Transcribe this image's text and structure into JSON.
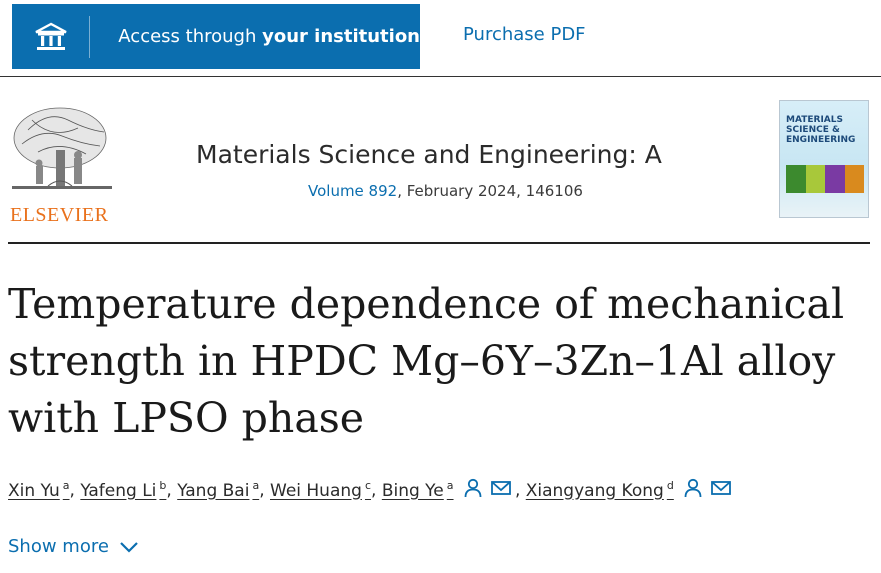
{
  "topbar": {
    "access_prefix": "Access through ",
    "access_bold": "your institution",
    "purchase_label": "Purchase PDF"
  },
  "journal": {
    "publisher": "ELSEVIER",
    "name": "Materials Science and Engineering: A",
    "volume_link": "Volume 892",
    "issue_rest": ", February 2024, 146106",
    "cover_title_line1": "MATERIALS",
    "cover_title_line2": "SCIENCE &",
    "cover_title_line3": "ENGINEERING"
  },
  "article": {
    "title_line1": "Temperature dependence of mechanical",
    "title_line2": "strength in HPDC Mg–6Y–3Zn–1Al alloy",
    "title_line3": "with LPSO phase"
  },
  "authors": [
    {
      "name": "Xin Yu",
      "aff": "a"
    },
    {
      "name": "Yafeng Li",
      "aff": "b"
    },
    {
      "name": "Yang Bai",
      "aff": "a"
    },
    {
      "name": "Wei Huang",
      "aff": "c"
    },
    {
      "name": "Bing Ye",
      "aff": "a"
    },
    {
      "name": "Xiangyang Kong",
      "aff": "d"
    }
  ],
  "show_more_label": "Show more",
  "colors": {
    "accent": "#0b6eaf",
    "elsevier_orange": "#e9711c"
  },
  "icons": [
    "institution-icon",
    "person-icon",
    "envelope-icon",
    "chevron-down-icon"
  ]
}
